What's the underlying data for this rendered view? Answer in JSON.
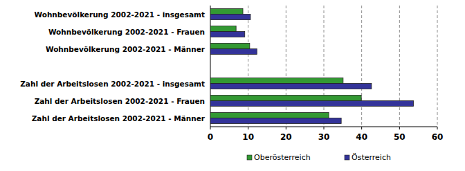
{
  "chart_data": {
    "type": "bar",
    "orientation": "horizontal",
    "categories": [
      "Wohnbevölkerung 2002-2021 - insgesamt",
      "Wohnbevölkerung 2002-2021 - Frauen",
      "Wohnbevölkerung 2002-2021 - Männer",
      null,
      "Zahl der Arbeitslosen 2002-2021 - insgesamt",
      "Zahl der Arbeitslosen 2002-2021 - Frauen",
      "Zahl der Arbeitslosen 2002-2021 - Männer"
    ],
    "series": [
      {
        "name": "Oberösterreich",
        "color": "#339933",
        "values": [
          8.6,
          6.8,
          10.4,
          null,
          35.1,
          39.9,
          31.3
        ]
      },
      {
        "name": "Österreich",
        "color": "#333399",
        "values": [
          10.6,
          9.1,
          12.3,
          null,
          42.6,
          53.7,
          34.6
        ]
      }
    ],
    "xlim": [
      0,
      60
    ],
    "xticks": [
      0,
      10,
      20,
      30,
      40,
      50,
      60
    ],
    "grid": true,
    "legend": "bottom"
  }
}
